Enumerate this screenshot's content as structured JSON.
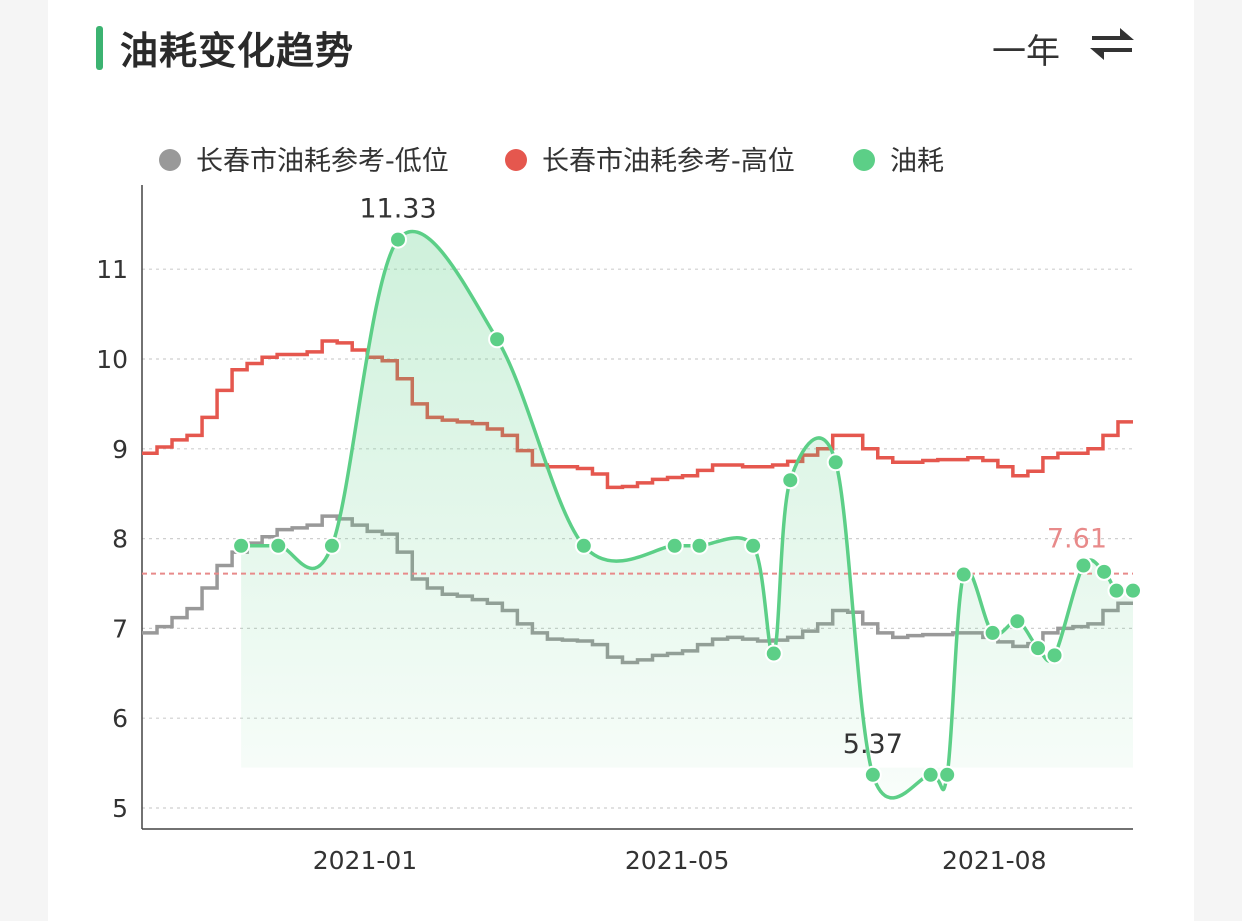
{
  "header": {
    "title": "油耗变化趋势",
    "range_label": "一年",
    "swap_icon": "swap-arrows-icon"
  },
  "colors": {
    "accent": "#3cb371",
    "low": "#999999",
    "high": "#e5574e",
    "fuel": "#5ccf87",
    "avg_line": "#e88a8a"
  },
  "chart_data": {
    "type": "line",
    "ylim": [
      5,
      11.5
    ],
    "yticks": [
      "5",
      "6",
      "7",
      "8",
      "9",
      "10",
      "11"
    ],
    "xtick_labels": [
      "2021-01",
      "2021-05",
      "2021-08"
    ],
    "grid": true,
    "legend": "top",
    "series": [
      {
        "name": "长春市油耗参考-低位",
        "values": [
          6.95,
          7.02,
          7.12,
          7.22,
          7.45,
          7.7,
          7.85,
          7.95,
          8.02,
          8.1,
          8.12,
          8.15,
          8.25,
          8.22,
          8.15,
          8.08,
          8.05,
          7.85,
          7.55,
          7.45,
          7.38,
          7.36,
          7.32,
          7.28,
          7.2,
          7.05,
          6.95,
          6.88,
          6.87,
          6.86,
          6.82,
          6.68,
          6.62,
          6.65,
          6.7,
          6.72,
          6.75,
          6.82,
          6.88,
          6.9,
          6.88,
          6.86,
          6.87,
          6.9,
          6.97,
          7.05,
          7.2,
          7.18,
          7.05,
          6.95,
          6.9,
          6.92,
          6.93,
          6.93,
          6.95,
          6.95,
          6.9,
          6.85,
          6.8,
          6.83,
          6.95,
          7.0,
          7.02,
          7.05,
          7.2,
          7.28
        ]
      },
      {
        "name": "长春市油耗参考-高位",
        "values": [
          8.95,
          9.02,
          9.1,
          9.15,
          9.35,
          9.65,
          9.88,
          9.95,
          10.02,
          10.05,
          10.05,
          10.08,
          10.2,
          10.18,
          10.1,
          10.02,
          9.98,
          9.78,
          9.5,
          9.35,
          9.32,
          9.3,
          9.28,
          9.22,
          9.15,
          8.98,
          8.82,
          8.8,
          8.8,
          8.78,
          8.72,
          8.57,
          8.58,
          8.62,
          8.66,
          8.68,
          8.7,
          8.76,
          8.82,
          8.82,
          8.8,
          8.8,
          8.82,
          8.86,
          8.93,
          9.0,
          9.15,
          9.15,
          9.0,
          8.9,
          8.85,
          8.85,
          8.87,
          8.88,
          8.88,
          8.9,
          8.87,
          8.8,
          8.7,
          8.75,
          8.9,
          8.95,
          8.95,
          9.0,
          9.15,
          9.3
        ]
      },
      {
        "name": "油耗",
        "points": [
          [
            0.12,
            7.92
          ],
          [
            0.165,
            7.92
          ],
          [
            0.23,
            7.92
          ],
          [
            0.31,
            11.33
          ],
          [
            0.43,
            10.22
          ],
          [
            0.535,
            7.92
          ],
          [
            0.645,
            7.92
          ],
          [
            0.675,
            7.92
          ],
          [
            0.74,
            7.92
          ],
          [
            0.765,
            6.72
          ],
          [
            0.785,
            8.65
          ],
          [
            0.84,
            8.85
          ],
          [
            0.885,
            5.37
          ],
          [
            0.955,
            5.37
          ],
          [
            0.975,
            5.37
          ],
          [
            0.995,
            7.6
          ],
          [
            1.03,
            6.95
          ],
          [
            1.06,
            7.08
          ],
          [
            1.085,
            6.78
          ],
          [
            1.105,
            6.7
          ],
          [
            1.14,
            7.7
          ],
          [
            1.165,
            7.63
          ],
          [
            1.18,
            7.42
          ],
          [
            1.2,
            7.42
          ]
        ],
        "max_label": "11.33",
        "min_label": "5.37"
      }
    ],
    "average": {
      "value": 7.61,
      "label": "7.61"
    }
  }
}
